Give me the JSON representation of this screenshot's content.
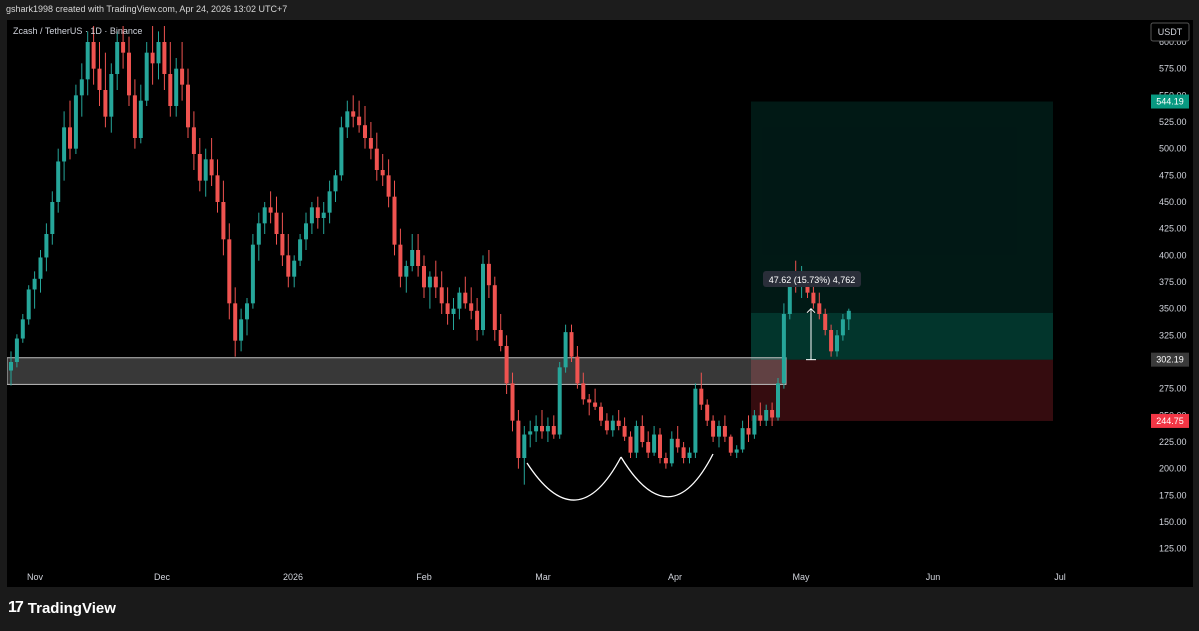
{
  "header": {
    "text": "gshark1998 created with TradingView.com, Apr 24, 2026 13:02 UTC+7"
  },
  "footer": {
    "brand": "TradingView"
  },
  "chart_data": {
    "type": "candlestick",
    "title": "Zcash / TetherUS · 1D · Binance",
    "currency": "USDT",
    "ylim": [
      105,
      615
    ],
    "y_ticks": [
      125,
      150,
      175,
      200,
      225,
      250,
      275,
      300,
      325,
      350,
      375,
      400,
      425,
      450,
      475,
      500,
      525,
      550,
      575,
      600
    ],
    "x_ticks": [
      "Nov",
      "Dec",
      "2026",
      "Feb",
      "Mar",
      "Apr",
      "May",
      "Jun",
      "Jul"
    ],
    "ohlc": [
      [
        292,
        310,
        278,
        300
      ],
      [
        300,
        326,
        295,
        322
      ],
      [
        322,
        345,
        318,
        340
      ],
      [
        340,
        372,
        335,
        368
      ],
      [
        368,
        385,
        350,
        378
      ],
      [
        378,
        405,
        365,
        398
      ],
      [
        398,
        430,
        385,
        420
      ],
      [
        420,
        460,
        410,
        450
      ],
      [
        450,
        500,
        440,
        488
      ],
      [
        488,
        535,
        470,
        520
      ],
      [
        520,
        545,
        490,
        500
      ],
      [
        500,
        560,
        495,
        550
      ],
      [
        550,
        580,
        530,
        565
      ],
      [
        565,
        610,
        550,
        600
      ],
      [
        600,
        615,
        560,
        575
      ],
      [
        575,
        600,
        540,
        555
      ],
      [
        555,
        590,
        520,
        530
      ],
      [
        530,
        580,
        515,
        570
      ],
      [
        570,
        610,
        555,
        600
      ],
      [
        600,
        615,
        575,
        590
      ],
      [
        590,
        605,
        540,
        550
      ],
      [
        550,
        565,
        500,
        510
      ],
      [
        510,
        560,
        505,
        545
      ],
      [
        545,
        600,
        540,
        590
      ],
      [
        590,
        615,
        560,
        580
      ],
      [
        580,
        610,
        565,
        600
      ],
      [
        600,
        615,
        555,
        570
      ],
      [
        570,
        600,
        530,
        540
      ],
      [
        540,
        585,
        530,
        575
      ],
      [
        575,
        600,
        545,
        560
      ],
      [
        560,
        575,
        510,
        520
      ],
      [
        520,
        535,
        480,
        495
      ],
      [
        495,
        510,
        460,
        470
      ],
      [
        470,
        500,
        455,
        490
      ],
      [
        490,
        510,
        465,
        475
      ],
      [
        475,
        490,
        440,
        450
      ],
      [
        450,
        470,
        400,
        415
      ],
      [
        415,
        430,
        340,
        355
      ],
      [
        355,
        370,
        305,
        320
      ],
      [
        320,
        350,
        310,
        340
      ],
      [
        340,
        360,
        325,
        355
      ],
      [
        355,
        420,
        350,
        410
      ],
      [
        410,
        440,
        395,
        430
      ],
      [
        430,
        450,
        420,
        445
      ],
      [
        445,
        460,
        430,
        440
      ],
      [
        440,
        455,
        410,
        420
      ],
      [
        420,
        440,
        390,
        400
      ],
      [
        400,
        420,
        370,
        380
      ],
      [
        380,
        400,
        370,
        395
      ],
      [
        395,
        420,
        390,
        415
      ],
      [
        415,
        440,
        405,
        430
      ],
      [
        430,
        450,
        420,
        445
      ],
      [
        445,
        455,
        425,
        435
      ],
      [
        435,
        450,
        420,
        440
      ],
      [
        440,
        470,
        430,
        460
      ],
      [
        460,
        480,
        450,
        475
      ],
      [
        475,
        530,
        470,
        520
      ],
      [
        520,
        545,
        510,
        535
      ],
      [
        535,
        550,
        520,
        530
      ],
      [
        530,
        545,
        515,
        522
      ],
      [
        522,
        540,
        500,
        510
      ],
      [
        510,
        525,
        490,
        500
      ],
      [
        500,
        515,
        470,
        480
      ],
      [
        480,
        495,
        465,
        475
      ],
      [
        475,
        490,
        445,
        455
      ],
      [
        455,
        470,
        400,
        410
      ],
      [
        410,
        425,
        370,
        380
      ],
      [
        380,
        395,
        365,
        390
      ],
      [
        390,
        420,
        385,
        405
      ],
      [
        405,
        420,
        380,
        390
      ],
      [
        390,
        400,
        360,
        370
      ],
      [
        370,
        385,
        350,
        380
      ],
      [
        380,
        395,
        360,
        370
      ],
      [
        370,
        385,
        345,
        355
      ],
      [
        355,
        370,
        335,
        345
      ],
      [
        345,
        360,
        330,
        350
      ],
      [
        350,
        370,
        340,
        365
      ],
      [
        365,
        380,
        350,
        355
      ],
      [
        355,
        370,
        340,
        348
      ],
      [
        348,
        360,
        320,
        330
      ],
      [
        330,
        400,
        325,
        392
      ],
      [
        392,
        405,
        360,
        372
      ],
      [
        372,
        380,
        320,
        330
      ],
      [
        330,
        345,
        310,
        315
      ],
      [
        315,
        325,
        270,
        280
      ],
      [
        280,
        290,
        235,
        245
      ],
      [
        245,
        255,
        200,
        210
      ],
      [
        210,
        240,
        185,
        232
      ],
      [
        232,
        245,
        220,
        235
      ],
      [
        235,
        250,
        225,
        240
      ],
      [
        240,
        255,
        228,
        235
      ],
      [
        235,
        248,
        225,
        240
      ],
      [
        240,
        250,
        228,
        232
      ],
      [
        232,
        300,
        228,
        295
      ],
      [
        295,
        335,
        290,
        328
      ],
      [
        328,
        335,
        300,
        305
      ],
      [
        305,
        315,
        275,
        280
      ],
      [
        280,
        290,
        260,
        265
      ],
      [
        265,
        270,
        250,
        262
      ],
      [
        262,
        275,
        255,
        258
      ],
      [
        258,
        262,
        240,
        245
      ],
      [
        245,
        252,
        232,
        236
      ],
      [
        236,
        250,
        230,
        245
      ],
      [
        245,
        255,
        236,
        240
      ],
      [
        240,
        248,
        226,
        230
      ],
      [
        230,
        235,
        210,
        215
      ],
      [
        215,
        245,
        210,
        240
      ],
      [
        240,
        250,
        220,
        225
      ],
      [
        225,
        235,
        210,
        215
      ],
      [
        215,
        240,
        212,
        232
      ],
      [
        232,
        238,
        205,
        210
      ],
      [
        210,
        215,
        200,
        205
      ],
      [
        205,
        235,
        202,
        228
      ],
      [
        228,
        240,
        215,
        220
      ],
      [
        220,
        225,
        205,
        210
      ],
      [
        210,
        220,
        205,
        215
      ],
      [
        215,
        280,
        210,
        275
      ],
      [
        275,
        290,
        255,
        260
      ],
      [
        260,
        265,
        240,
        245
      ],
      [
        245,
        250,
        225,
        230
      ],
      [
        230,
        245,
        220,
        240
      ],
      [
        240,
        250,
        225,
        230
      ],
      [
        230,
        232,
        212,
        215
      ],
      [
        215,
        222,
        210,
        218
      ],
      [
        218,
        245,
        215,
        238
      ],
      [
        238,
        250,
        225,
        232
      ],
      [
        232,
        255,
        228,
        250
      ],
      [
        250,
        262,
        240,
        245
      ],
      [
        245,
        260,
        240,
        255
      ],
      [
        255,
        262,
        240,
        248
      ],
      [
        248,
        285,
        245,
        280
      ],
      [
        280,
        355,
        275,
        345
      ],
      [
        345,
        385,
        340,
        380
      ],
      [
        380,
        395,
        365,
        372
      ],
      [
        372,
        390,
        360,
        380
      ],
      [
        380,
        385,
        360,
        365
      ],
      [
        365,
        375,
        350,
        355
      ],
      [
        355,
        365,
        340,
        345
      ],
      [
        345,
        350,
        325,
        330
      ],
      [
        330,
        335,
        305,
        310
      ],
      [
        310,
        330,
        305,
        325
      ],
      [
        325,
        345,
        320,
        340
      ],
      [
        340,
        350,
        330,
        348
      ]
    ],
    "support_zone": {
      "top": 304,
      "bottom": 279
    },
    "long_position": {
      "entry": 302.19,
      "target": 544.19,
      "stop": 244.75
    },
    "measure_label": "47.62 (15.73%) 4,762",
    "price_labels": [
      {
        "value": 544.19,
        "text": "544.19",
        "color": "#089981"
      },
      {
        "value": 302.19,
        "text": "302.19",
        "color": "#3a3a3a"
      },
      {
        "value": 244.75,
        "text": "244.75",
        "color": "#f23645"
      }
    ],
    "colors": {
      "up": "#26a69a",
      "down": "#ef5350",
      "background": "#000000",
      "axis_text": "#d1d4dc"
    }
  }
}
